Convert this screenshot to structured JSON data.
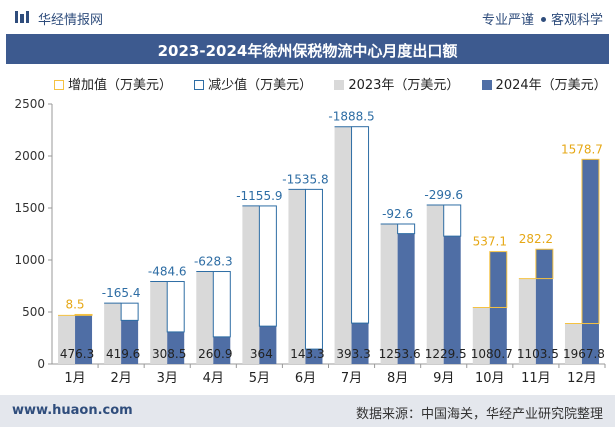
{
  "header": {
    "brand": "华经情报网",
    "tagline_left": "专业严谨",
    "tagline_right": "客观科学"
  },
  "title": "2023-2024年徐州保税物流中心月度出口额",
  "legend": {
    "increase": "增加值（万美元）",
    "decrease": "减少值（万美元）",
    "y2023": "2023年（万美元）",
    "y2024": "2024年（万美元）"
  },
  "footer": {
    "url": "www.huaon.com",
    "source": "数据来源：中国海关，华经产业研究院整理"
  },
  "colors": {
    "y2023": "#d9d9d9",
    "y2024": "#4f6ea5",
    "increase": "#f5c242",
    "decrease": "#2e6da4",
    "title_bg": "#3d5a8f"
  },
  "chart_data": {
    "type": "bar",
    "categories": [
      "1月",
      "2月",
      "3月",
      "4月",
      "5月",
      "6月",
      "7月",
      "8月",
      "9月",
      "10月",
      "11月",
      "12月"
    ],
    "series": [
      {
        "name": "2023年（万美元）",
        "values": [
          467.8,
          585.0,
          793.1,
          889.2,
          1519.9,
          1679.1,
          2281.8,
          1346.2,
          1529.1,
          543.6,
          821.3,
          389.1
        ]
      },
      {
        "name": "2024年（万美元）",
        "values": [
          476.3,
          419.6,
          308.5,
          260.9,
          364,
          143.3,
          393.3,
          1253.6,
          1229.5,
          1080.7,
          1103.5,
          1967.8
        ]
      }
    ],
    "change_labels": [
      "8.5",
      "-165.4",
      "-484.6",
      "-628.3",
      "-1155.9",
      "-1535.8",
      "-1888.5",
      "-92.6",
      "-299.6",
      "537.1",
      "282.2",
      "1578.7"
    ],
    "value_labels_2024": [
      "476.3",
      "419.6",
      "308.5",
      "260.9",
      "364",
      "143.3",
      "393.3",
      "1253.6",
      "1229.5",
      "1080.7",
      "1103.5",
      "1967.8"
    ],
    "y_ticks": [
      "0",
      "500",
      "1000",
      "1500",
      "2000",
      "2500"
    ],
    "ylim": [
      0,
      2500
    ],
    "grid": false,
    "legend_position": "top"
  }
}
